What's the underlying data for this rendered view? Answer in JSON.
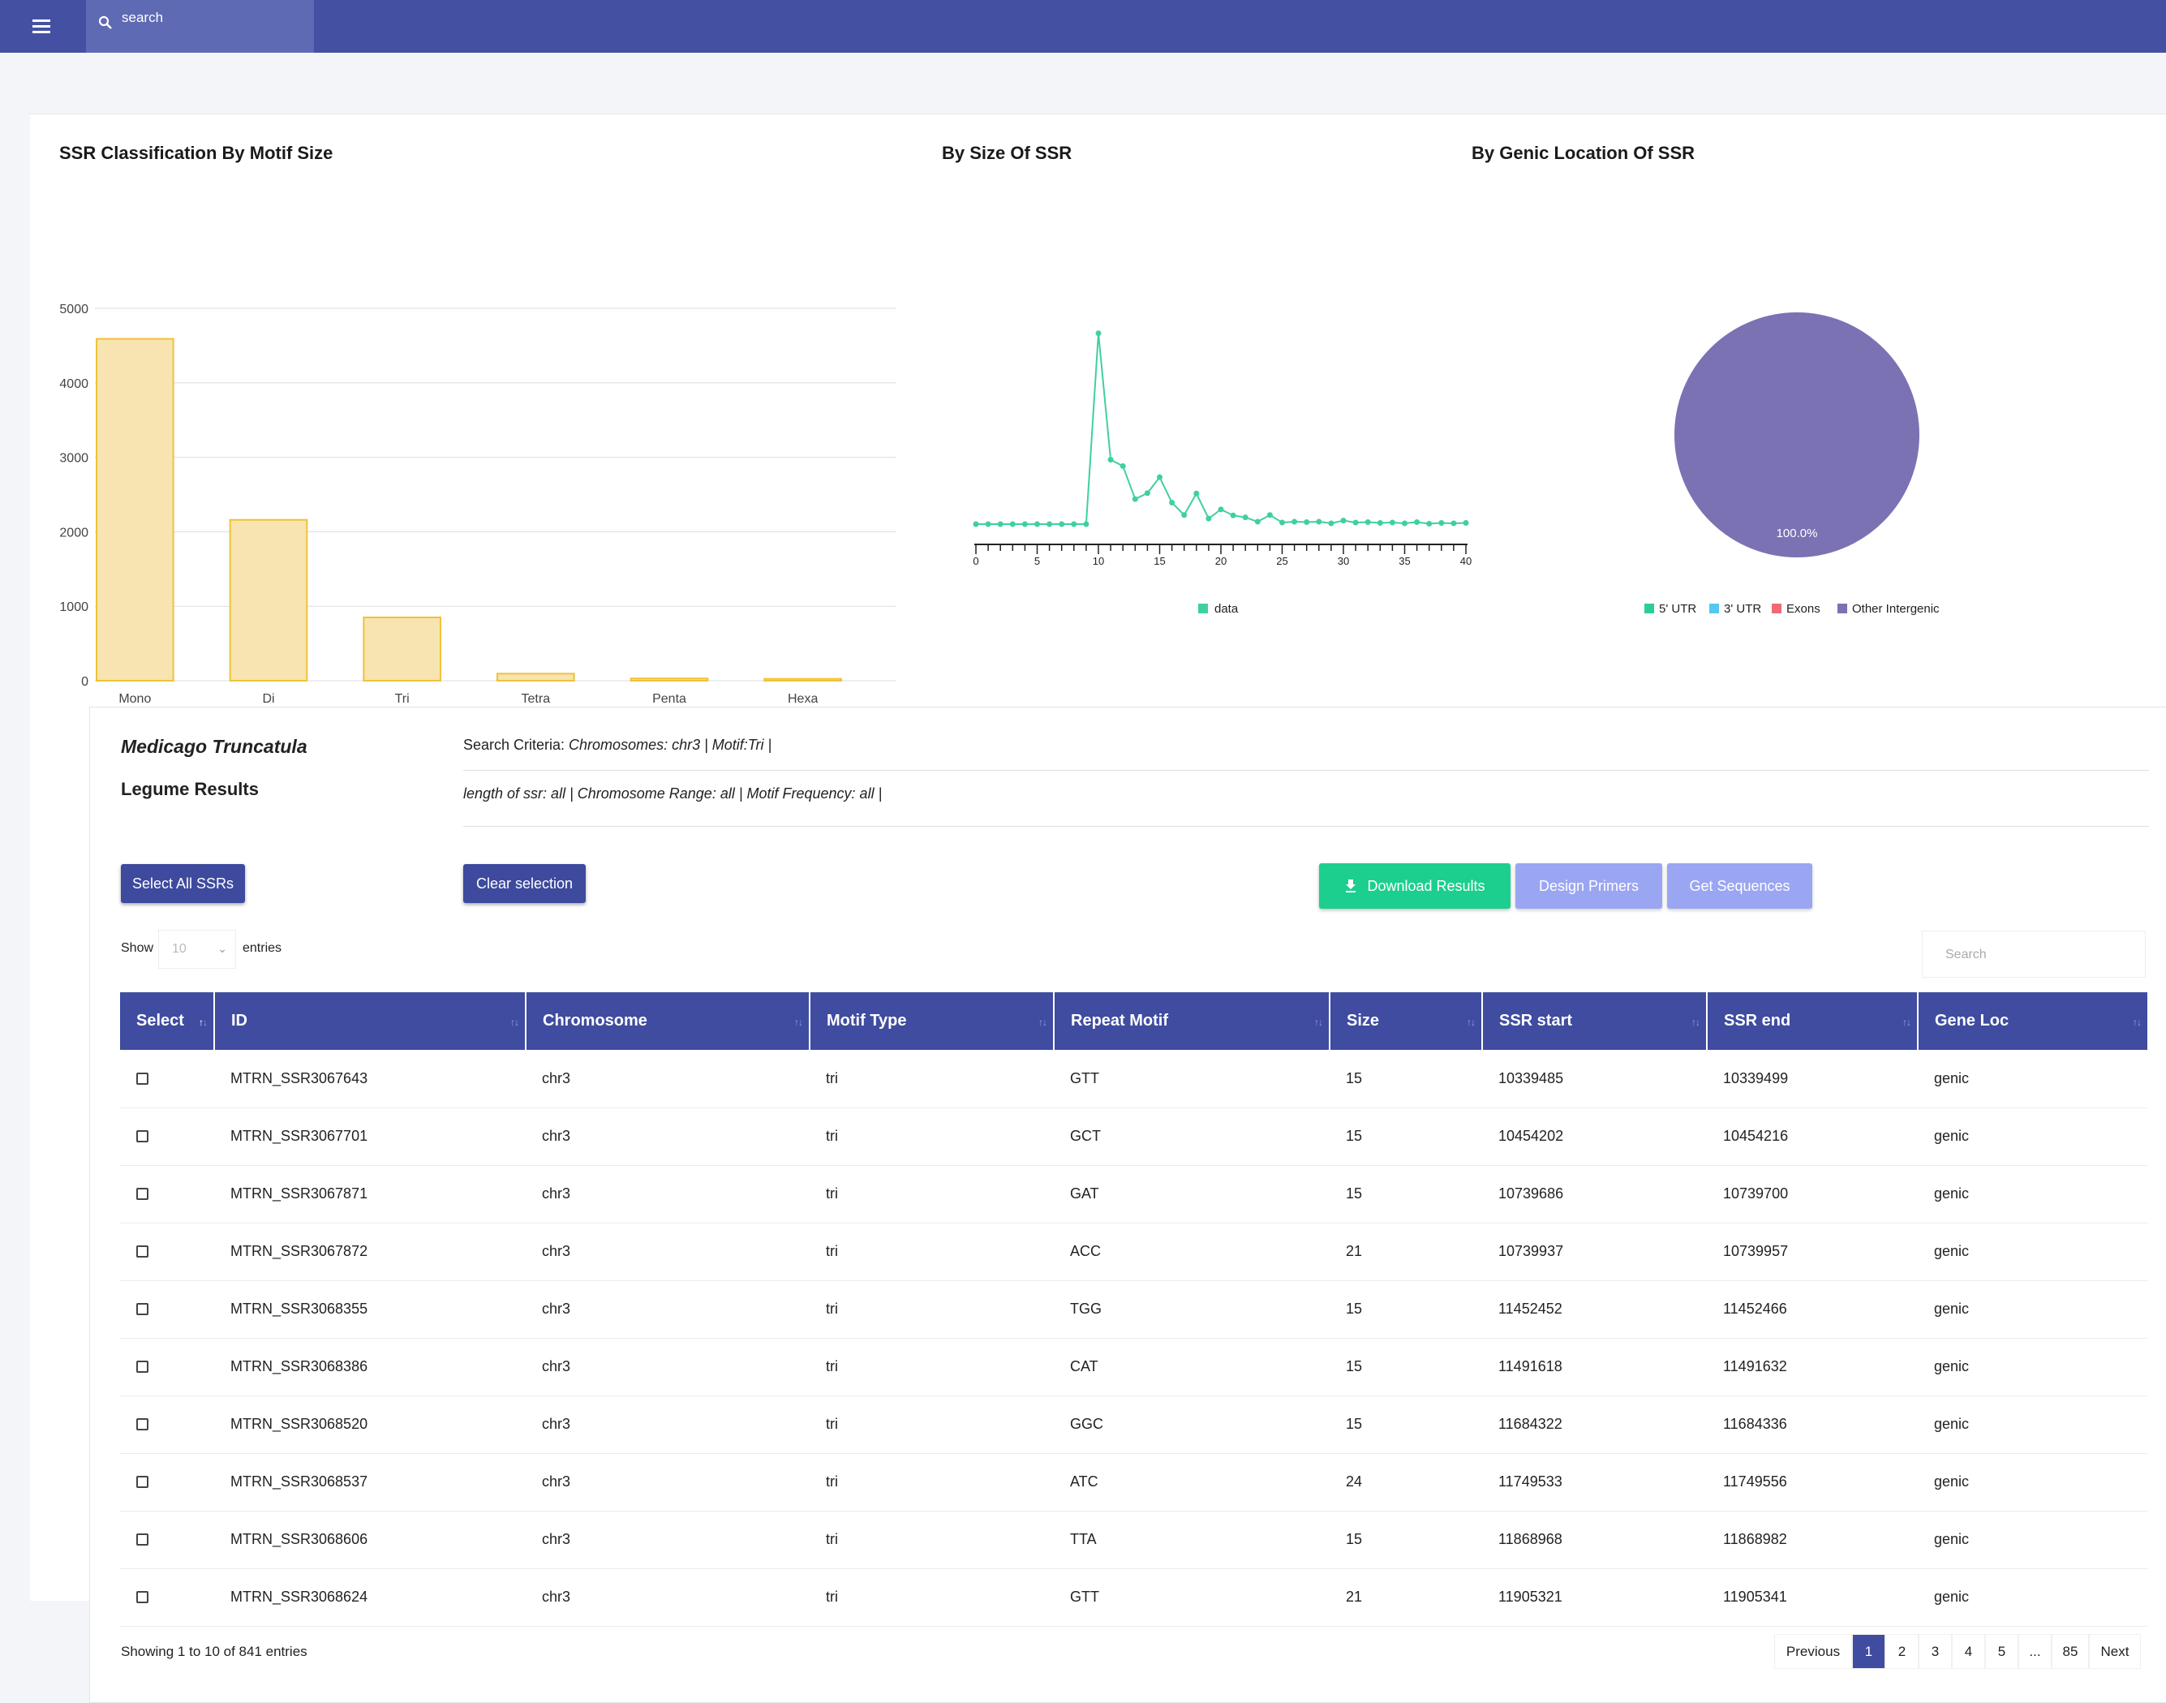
{
  "topbar": {
    "search_placeholder": "search"
  },
  "charts": {
    "motif": {
      "title": "SSR Classification By Motif Size"
    },
    "size": {
      "title": "By Size Of SSR",
      "legend": "data"
    },
    "genic": {
      "title": "By Genic Location Of SSR",
      "pie_label": "100.0%"
    }
  },
  "chart_data": [
    {
      "type": "bar",
      "title": "SSR Classification By Motif Size",
      "categories": [
        "Mono",
        "Di",
        "Tri",
        "Tetra",
        "Penta",
        "Hexa"
      ],
      "values": [
        4590,
        2160,
        850,
        95,
        30,
        25
      ],
      "ylim": [
        0,
        5000
      ],
      "yticks": [
        0,
        1000,
        2000,
        3000,
        4000,
        5000
      ],
      "colors": {
        "fill": "#f7e4b0",
        "stroke": "#f0c23b"
      },
      "grid": true
    },
    {
      "type": "line",
      "title": "By Size Of SSR",
      "x": [
        0,
        1,
        2,
        3,
        4,
        5,
        6,
        7,
        8,
        9,
        10,
        11,
        12,
        13,
        14,
        15,
        16,
        17,
        18,
        19,
        20,
        21,
        22,
        23,
        24,
        25,
        26,
        27,
        28,
        29,
        30,
        31,
        32,
        33,
        34,
        35,
        36,
        37,
        38,
        39,
        40
      ],
      "values": [
        0,
        0,
        0,
        0,
        0,
        0,
        0,
        0,
        0,
        0,
        4800,
        1620,
        1460,
        630,
        780,
        1180,
        540,
        230,
        770,
        140,
        370,
        220,
        170,
        60,
        230,
        40,
        60,
        50,
        60,
        20,
        90,
        40,
        50,
        30,
        40,
        20,
        50,
        10,
        30,
        20,
        30
      ],
      "xticks": [
        0,
        5,
        10,
        15,
        20,
        25,
        30,
        35,
        40
      ],
      "ylim": [
        0,
        5000
      ],
      "series": [
        {
          "name": "data",
          "color": "#3fd0a0"
        }
      ],
      "legend": "bottom"
    },
    {
      "type": "pie",
      "title": "By Genic Location Of SSR",
      "labels": [
        "5' UTR",
        "3' UTR",
        "Exons",
        "Other Intergenic"
      ],
      "values": [
        0,
        0,
        0,
        100
      ],
      "colors": [
        "#2ecc9a",
        "#54c8f0",
        "#ef6b77",
        "#7b72b4"
      ],
      "slice_label": "100.0%",
      "legend": "bottom"
    }
  ],
  "results": {
    "species": "Medicago Truncatula",
    "title": "Legume Results",
    "criteria_label": "Search Criteria: ",
    "criteria_values": "Chromosomes: chr3 | Motif:Tri |",
    "criteria_line2": "length of ssr: all | Chromosome Range: all | Motif Frequency: all |",
    "buttons": {
      "select_all": "Select All SSRs",
      "clear": "Clear selection",
      "download": "Download Results",
      "primers": "Design Primers",
      "sequences": "Get Sequences"
    },
    "show_label": "Show",
    "entries_value": "10",
    "entries_label": "entries",
    "search_placeholder": "Search",
    "columns": [
      "Select",
      "ID",
      "Chromosome",
      "Motif Type",
      "Repeat Motif",
      "Size",
      "SSR start",
      "SSR end",
      "Gene Loc"
    ],
    "rows": [
      [
        "MTRN_SSR3067643",
        "chr3",
        "tri",
        "GTT",
        "15",
        "10339485",
        "10339499",
        "genic"
      ],
      [
        "MTRN_SSR3067701",
        "chr3",
        "tri",
        "GCT",
        "15",
        "10454202",
        "10454216",
        "genic"
      ],
      [
        "MTRN_SSR3067871",
        "chr3",
        "tri",
        "GAT",
        "15",
        "10739686",
        "10739700",
        "genic"
      ],
      [
        "MTRN_SSR3067872",
        "chr3",
        "tri",
        "ACC",
        "21",
        "10739937",
        "10739957",
        "genic"
      ],
      [
        "MTRN_SSR3068355",
        "chr3",
        "tri",
        "TGG",
        "15",
        "11452452",
        "11452466",
        "genic"
      ],
      [
        "MTRN_SSR3068386",
        "chr3",
        "tri",
        "CAT",
        "15",
        "11491618",
        "11491632",
        "genic"
      ],
      [
        "MTRN_SSR3068520",
        "chr3",
        "tri",
        "GGC",
        "15",
        "11684322",
        "11684336",
        "genic"
      ],
      [
        "MTRN_SSR3068537",
        "chr3",
        "tri",
        "ATC",
        "24",
        "11749533",
        "11749556",
        "genic"
      ],
      [
        "MTRN_SSR3068606",
        "chr3",
        "tri",
        "TTA",
        "15",
        "11868968",
        "11868982",
        "genic"
      ],
      [
        "MTRN_SSR3068624",
        "chr3",
        "tri",
        "GTT",
        "21",
        "11905321",
        "11905341",
        "genic"
      ]
    ],
    "info": "Showing 1 to 10 of 841 entries",
    "pager": [
      "Previous",
      "1",
      "2",
      "3",
      "4",
      "5",
      "...",
      "85",
      "Next"
    ],
    "active_page": "1"
  }
}
